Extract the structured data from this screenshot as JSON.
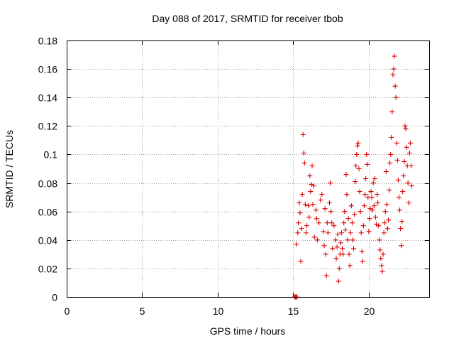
{
  "chart_data": {
    "type": "scatter",
    "title": "Day 088 of 2017, SRMTID for receiver tbob",
    "xlabel": "GPS time / hours",
    "ylabel": "SRMTID / TECUs",
    "xlim": [
      0,
      24
    ],
    "ylim": [
      0,
      0.18
    ],
    "x_ticks": [
      0,
      5,
      10,
      15,
      20
    ],
    "x_tick_labels": [
      "0",
      "5",
      "10",
      "15",
      "20"
    ],
    "y_ticks": [
      0,
      0.02,
      0.04,
      0.06,
      0.08,
      0.1,
      0.12,
      0.14,
      0.16,
      0.18
    ],
    "y_tick_labels": [
      "0",
      "0.02",
      "0.04",
      "0.06",
      "0.08",
      "0.1",
      "0.12",
      "0.14",
      "0.16",
      "0.18"
    ],
    "grid": true,
    "marker": "+",
    "series": [
      {
        "name": "SRMTID",
        "color": "#dd0000",
        "points": [
          [
            15.1,
            0.0
          ],
          [
            15.15,
            0.0
          ],
          [
            15.2,
            0.0
          ],
          [
            15.25,
            0.0
          ],
          [
            15.2,
            0.037
          ],
          [
            15.3,
            0.045
          ],
          [
            15.35,
            0.052
          ],
          [
            15.4,
            0.066
          ],
          [
            15.45,
            0.059
          ],
          [
            15.5,
            0.025
          ],
          [
            15.55,
            0.048
          ],
          [
            15.6,
            0.072
          ],
          [
            15.65,
            0.114
          ],
          [
            15.7,
            0.101
          ],
          [
            15.75,
            0.094
          ],
          [
            15.8,
            0.065
          ],
          [
            15.85,
            0.045
          ],
          [
            15.9,
            0.05
          ],
          [
            16.0,
            0.064
          ],
          [
            16.05,
            0.056
          ],
          [
            16.1,
            0.085
          ],
          [
            16.15,
            0.074
          ],
          [
            16.2,
            0.079
          ],
          [
            16.25,
            0.092
          ],
          [
            16.3,
            0.065
          ],
          [
            16.35,
            0.078
          ],
          [
            16.4,
            0.042
          ],
          [
            16.5,
            0.061
          ],
          [
            16.55,
            0.055
          ],
          [
            16.6,
            0.04
          ],
          [
            16.7,
            0.052
          ],
          [
            16.8,
            0.068
          ],
          [
            16.9,
            0.072
          ],
          [
            17.0,
            0.046
          ],
          [
            17.05,
            0.036
          ],
          [
            17.1,
            0.062
          ],
          [
            17.15,
            0.03
          ],
          [
            17.2,
            0.015
          ],
          [
            17.25,
            0.052
          ],
          [
            17.3,
            0.045
          ],
          [
            17.4,
            0.066
          ],
          [
            17.45,
            0.08
          ],
          [
            17.5,
            0.06
          ],
          [
            17.55,
            0.052
          ],
          [
            17.6,
            0.034
          ],
          [
            17.7,
            0.05
          ],
          [
            17.8,
            0.04
          ],
          [
            17.85,
            0.027
          ],
          [
            17.9,
            0.035
          ],
          [
            17.95,
            0.044
          ],
          [
            18.0,
            0.011
          ],
          [
            18.05,
            0.02
          ],
          [
            18.1,
            0.03
          ],
          [
            18.15,
            0.038
          ],
          [
            18.2,
            0.045
          ],
          [
            18.25,
            0.034
          ],
          [
            18.3,
            0.03
          ],
          [
            18.35,
            0.052
          ],
          [
            18.4,
            0.06
          ],
          [
            18.45,
            0.047
          ],
          [
            18.5,
            0.086
          ],
          [
            18.55,
            0.072
          ],
          [
            18.6,
            0.04
          ],
          [
            18.65,
            0.055
          ],
          [
            18.7,
            0.03
          ],
          [
            18.75,
            0.022
          ],
          [
            18.8,
            0.045
          ],
          [
            18.85,
            0.064
          ],
          [
            18.9,
            0.052
          ],
          [
            18.95,
            0.04
          ],
          [
            19.0,
            0.034
          ],
          [
            19.05,
            0.058
          ],
          [
            19.1,
            0.081
          ],
          [
            19.15,
            0.092
          ],
          [
            19.2,
            0.1
          ],
          [
            19.25,
            0.106
          ],
          [
            19.3,
            0.108
          ],
          [
            19.35,
            0.09
          ],
          [
            19.4,
            0.074
          ],
          [
            19.45,
            0.06
          ],
          [
            19.5,
            0.045
          ],
          [
            19.55,
            0.032
          ],
          [
            19.6,
            0.025
          ],
          [
            19.65,
            0.05
          ],
          [
            19.7,
            0.064
          ],
          [
            19.75,
            0.072
          ],
          [
            19.8,
            0.083
          ],
          [
            19.85,
            0.1
          ],
          [
            19.9,
            0.093
          ],
          [
            19.95,
            0.07
          ],
          [
            20.0,
            0.046
          ],
          [
            20.05,
            0.055
          ],
          [
            20.1,
            0.062
          ],
          [
            20.15,
            0.074
          ],
          [
            20.2,
            0.07
          ],
          [
            20.25,
            0.061
          ],
          [
            20.3,
            0.08
          ],
          [
            20.35,
            0.064
          ],
          [
            20.4,
            0.083
          ],
          [
            20.45,
            0.056
          ],
          [
            20.5,
            0.051
          ],
          [
            20.55,
            0.072
          ],
          [
            20.6,
            0.066
          ],
          [
            20.65,
            0.05
          ],
          [
            20.7,
            0.04
          ],
          [
            20.75,
            0.033
          ],
          [
            20.8,
            0.027
          ],
          [
            20.85,
            0.022
          ],
          [
            20.9,
            0.018
          ],
          [
            20.95,
            0.03
          ],
          [
            21.0,
            0.045
          ],
          [
            21.05,
            0.052
          ],
          [
            21.1,
            0.06
          ],
          [
            21.15,
            0.088
          ],
          [
            21.2,
            0.065
          ],
          [
            21.25,
            0.048
          ],
          [
            21.3,
            0.054
          ],
          [
            21.35,
            0.075
          ],
          [
            21.4,
            0.094
          ],
          [
            21.45,
            0.1
          ],
          [
            21.5,
            0.112
          ],
          [
            21.55,
            0.13
          ],
          [
            21.6,
            0.156
          ],
          [
            21.65,
            0.16
          ],
          [
            21.7,
            0.169
          ],
          [
            21.75,
            0.148
          ],
          [
            21.8,
            0.14
          ],
          [
            21.85,
            0.108
          ],
          [
            21.9,
            0.096
          ],
          [
            21.95,
            0.082
          ],
          [
            22.0,
            0.07
          ],
          [
            22.05,
            0.061
          ],
          [
            22.1,
            0.048
          ],
          [
            22.15,
            0.036
          ],
          [
            22.2,
            0.053
          ],
          [
            22.25,
            0.074
          ],
          [
            22.3,
            0.085
          ],
          [
            22.35,
            0.095
          ],
          [
            22.4,
            0.12
          ],
          [
            22.45,
            0.118
          ],
          [
            22.5,
            0.105
          ],
          [
            22.55,
            0.092
          ],
          [
            22.6,
            0.08
          ],
          [
            22.65,
            0.066
          ],
          [
            22.7,
            0.101
          ],
          [
            22.75,
            0.108
          ],
          [
            22.8,
            0.092
          ],
          [
            22.85,
            0.078
          ]
        ]
      }
    ]
  }
}
